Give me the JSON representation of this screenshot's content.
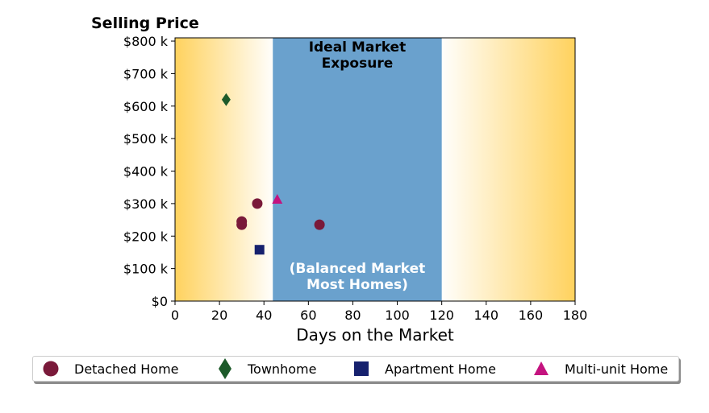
{
  "chart_data": {
    "type": "scatter",
    "title": "Selling Price",
    "xlabel": "Days on the Market",
    "ylabel": "",
    "xlim": [
      0,
      180
    ],
    "ylim": [
      0,
      810000
    ],
    "x_ticks": [
      0,
      20,
      40,
      60,
      80,
      100,
      120,
      140,
      160,
      180
    ],
    "y_ticks": [
      0,
      100000,
      200000,
      300000,
      400000,
      500000,
      600000,
      700000,
      800000
    ],
    "y_tick_labels": [
      "$0",
      "$100 k",
      "$200 k",
      "$300 k",
      "$400 k",
      "$500 k",
      "$600 k",
      "$700 k",
      "$800 k"
    ],
    "grid": false,
    "legend_position": "bottom",
    "ideal_region": {
      "x_range": [
        44,
        120
      ],
      "color": "#6aa1cd",
      "label_top": [
        "Ideal Market",
        "Exposure"
      ],
      "label_bottom": [
        "(Balanced Market",
        "Most Homes)"
      ]
    },
    "background_gradient": {
      "edge_color": "#ffd25e",
      "center_color": "#ffffff"
    },
    "series": [
      {
        "name": "Detached Home",
        "marker": "circle",
        "color": "#7a1a3a",
        "points": [
          [
            30,
            245000
          ],
          [
            30,
            235000
          ],
          [
            37,
            300000
          ],
          [
            65,
            235000
          ]
        ]
      },
      {
        "name": "Townhome",
        "marker": "diamond",
        "color": "#1d5a2a",
        "points": [
          [
            23,
            620000
          ]
        ]
      },
      {
        "name": "Apartment Home",
        "marker": "square",
        "color": "#16216e",
        "points": [
          [
            38,
            158000
          ]
        ]
      },
      {
        "name": "Multi-unit Home",
        "marker": "triangle",
        "color": "#c4137f",
        "points": [
          [
            46,
            312000
          ]
        ]
      }
    ]
  }
}
